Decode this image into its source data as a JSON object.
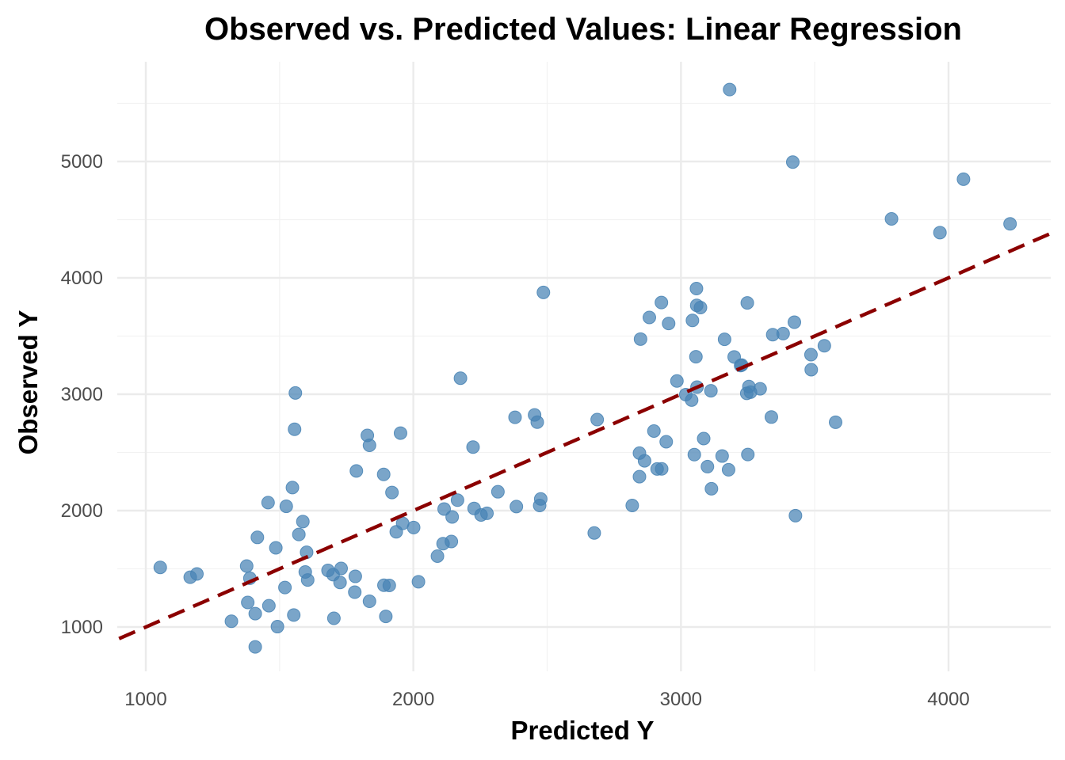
{
  "chart_data": {
    "type": "scatter",
    "title": "Observed vs. Predicted Values: Linear Regression",
    "xlabel": "Predicted Y",
    "ylabel": "Observed Y",
    "xlim": [
      900,
      4400
    ],
    "ylim": [
      620,
      5700
    ],
    "x_ticks": [
      1000,
      2000,
      3000,
      4000
    ],
    "y_ticks": [
      1000,
      2000,
      3000,
      4000,
      5000
    ],
    "x_tick_labels": [
      "1000",
      "2000",
      "3000",
      "4000"
    ],
    "y_tick_labels": [
      "1000",
      "2000",
      "3000",
      "4000",
      "5000"
    ],
    "grid": true,
    "legend": "none",
    "point_color": "#4682B4",
    "reference_line": {
      "type": "y=x",
      "color": "#8B0000",
      "style": "dashed"
    },
    "points": [
      [
        1054,
        1512
      ],
      [
        1166,
        1428
      ],
      [
        1191,
        1456
      ],
      [
        1377,
        1524
      ],
      [
        1381,
        1211
      ],
      [
        1389,
        1419
      ],
      [
        1409,
        829
      ],
      [
        1409,
        1115
      ],
      [
        1417,
        1770
      ],
      [
        1460,
        1183
      ],
      [
        1457,
        2069
      ],
      [
        1486,
        1680
      ],
      [
        1492,
        1003
      ],
      [
        1520,
        1339
      ],
      [
        1525,
        2037
      ],
      [
        1548,
        2198
      ],
      [
        1553,
        1103
      ],
      [
        1556,
        2699
      ],
      [
        1559,
        3011
      ],
      [
        1572,
        1795
      ],
      [
        1587,
        1906
      ],
      [
        1596,
        1473
      ],
      [
        1601,
        1642
      ],
      [
        1605,
        1404
      ],
      [
        1320,
        1049
      ],
      [
        1681,
        1486
      ],
      [
        1700,
        1450
      ],
      [
        1703,
        1075
      ],
      [
        1726,
        1383
      ],
      [
        1730,
        1503
      ],
      [
        1781,
        1299
      ],
      [
        1783,
        1435
      ],
      [
        1787,
        2341
      ],
      [
        1828,
        2646
      ],
      [
        1836,
        2561
      ],
      [
        1836,
        1221
      ],
      [
        1889,
        2311
      ],
      [
        1897,
        1091
      ],
      [
        1890,
        1359
      ],
      [
        1910,
        1357
      ],
      [
        1920,
        2156
      ],
      [
        1936,
        1818
      ],
      [
        1952,
        2666
      ],
      [
        1960,
        1890
      ],
      [
        2001,
        1855
      ],
      [
        2019,
        1389
      ],
      [
        2090,
        1609
      ],
      [
        2111,
        1716
      ],
      [
        2115,
        2014
      ],
      [
        2142,
        1735
      ],
      [
        2145,
        1946
      ],
      [
        2165,
        2090
      ],
      [
        2176,
        3138
      ],
      [
        2223,
        2546
      ],
      [
        2227,
        2019
      ],
      [
        2253,
        1963
      ],
      [
        2275,
        1977
      ],
      [
        2316,
        2162
      ],
      [
        2385,
        2035
      ],
      [
        2380,
        2802
      ],
      [
        2453,
        2822
      ],
      [
        2463,
        2760
      ],
      [
        2472,
        2044
      ],
      [
        2476,
        2100
      ],
      [
        2486,
        3875
      ],
      [
        2676,
        1808
      ],
      [
        2687,
        2782
      ],
      [
        2818,
        2044
      ],
      [
        2845,
        2494
      ],
      [
        2845,
        2292
      ],
      [
        2849,
        3474
      ],
      [
        2864,
        2428
      ],
      [
        2882,
        3660
      ],
      [
        2899,
        2684
      ],
      [
        2911,
        2358
      ],
      [
        2928,
        2359
      ],
      [
        2927,
        3788
      ],
      [
        2945,
        2592
      ],
      [
        2954,
        3608
      ],
      [
        2985,
        3114
      ],
      [
        3018,
        2997
      ],
      [
        3040,
        2950
      ],
      [
        3043,
        3634
      ],
      [
        3050,
        2481
      ],
      [
        3056,
        3322
      ],
      [
        3058,
        3908
      ],
      [
        3059,
        3764
      ],
      [
        3060,
        3061
      ],
      [
        3073,
        3745
      ],
      [
        3085,
        2619
      ],
      [
        3099,
        2378
      ],
      [
        3112,
        3030
      ],
      [
        3114,
        2188
      ],
      [
        3154,
        2469
      ],
      [
        3163,
        3472
      ],
      [
        3178,
        2351
      ],
      [
        3182,
        5618
      ],
      [
        3199,
        3321
      ],
      [
        3227,
        3251
      ],
      [
        3223,
        3247
      ],
      [
        3246,
        3008
      ],
      [
        3248,
        3785
      ],
      [
        3250,
        2482
      ],
      [
        3254,
        3066
      ],
      [
        3260,
        3018
      ],
      [
        3296,
        3047
      ],
      [
        3338,
        2804
      ],
      [
        3343,
        3512
      ],
      [
        3382,
        3521
      ],
      [
        3418,
        4995
      ],
      [
        3424,
        3619
      ],
      [
        3428,
        1957
      ],
      [
        3486,
        3340
      ],
      [
        3487,
        3211
      ],
      [
        3536,
        3417
      ],
      [
        3578,
        2759
      ],
      [
        3787,
        4507
      ],
      [
        3968,
        4389
      ],
      [
        4056,
        4848
      ],
      [
        4230,
        4464
      ]
    ]
  }
}
